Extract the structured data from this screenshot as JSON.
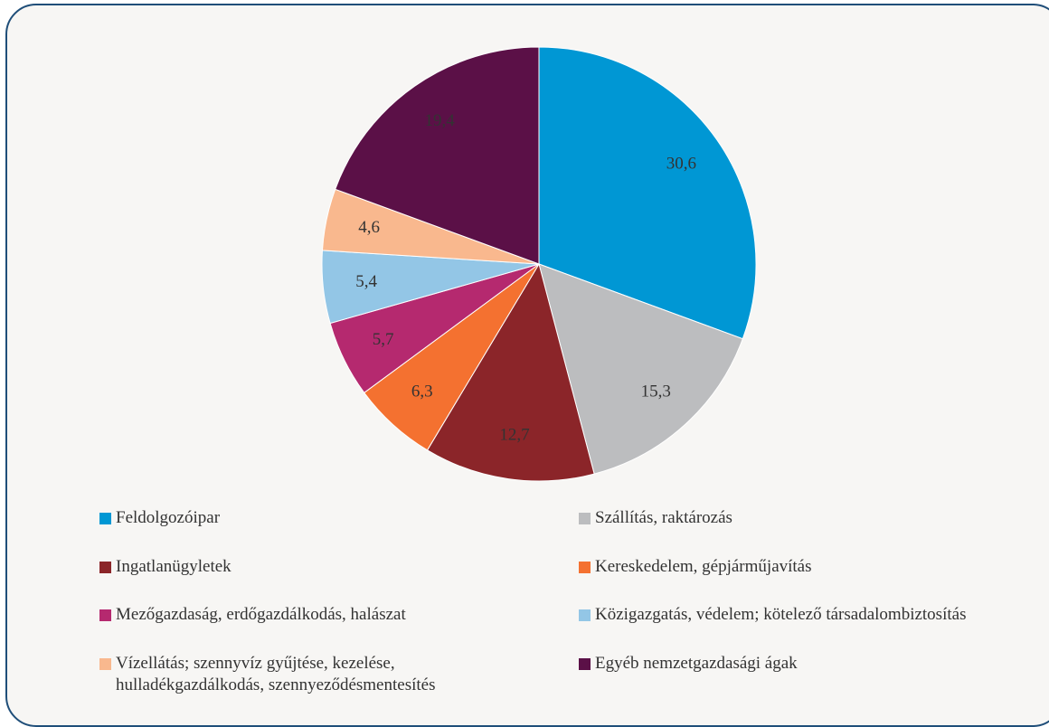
{
  "chart_data": {
    "type": "pie",
    "categories": [
      "Feldolgozóipar",
      "Szállítás, raktározás",
      "Ingatlanügyletek",
      "Kereskedelem, gépjárműjavítás",
      "Mezőgazdaság, erdőgazdálkodás, halászat",
      "Közigazgatás, védelem; kötelező társadalombiztosítás",
      "Vízellátás; szennyvíz gyűjtése, kezelése, hulladékgazdálkodás, szennyeződésmentesítés",
      "Egyéb nemzetgazdasági ágak"
    ],
    "values": [
      30.6,
      15.3,
      12.7,
      6.3,
      5.7,
      5.4,
      4.6,
      19.4
    ],
    "value_labels": [
      "30,6",
      "15,3",
      "12,7",
      "6,3",
      "5,7",
      "5,4",
      "4,6",
      "19,4"
    ],
    "colors": [
      "#0097d4",
      "#bcbdbf",
      "#8b2529",
      "#f47130",
      "#b5296f",
      "#93c6e6",
      "#f9b88e",
      "#5b1047"
    ],
    "legend": "bottom"
  }
}
